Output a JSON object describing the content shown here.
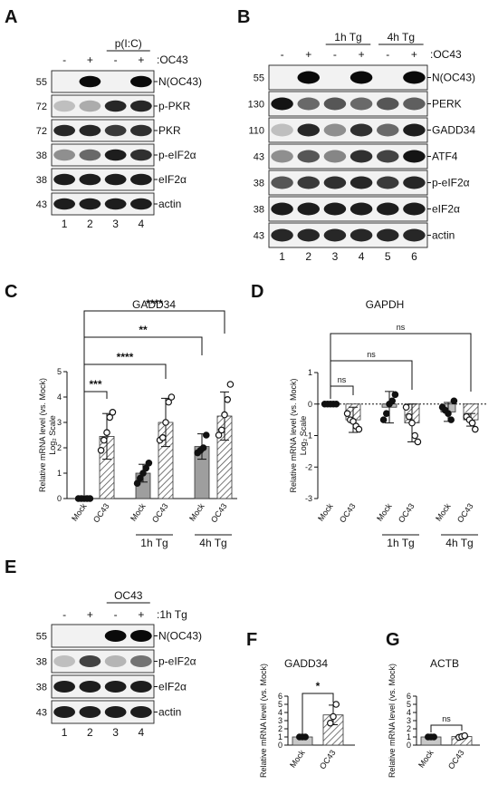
{
  "panels": {
    "A": {
      "label": "A",
      "group_label": "p(I:C)",
      "condition_label": ":OC43",
      "signs": [
        "-",
        "+",
        "-",
        "+"
      ],
      "lanes": [
        "1",
        "2",
        "3",
        "4"
      ],
      "blots": [
        {
          "mw": "55",
          "name": "N(OC43)"
        },
        {
          "mw": "72",
          "name": "p-PKR"
        },
        {
          "mw": "72",
          "name": "PKR"
        },
        {
          "mw": "38",
          "name": "p-eIF2α"
        },
        {
          "mw": "38",
          "name": "eIF2α"
        },
        {
          "mw": "43",
          "name": "actin"
        }
      ]
    },
    "B": {
      "label": "B",
      "group_labels": [
        "1h Tg",
        "4h Tg"
      ],
      "condition_label": ":OC43",
      "signs": [
        "-",
        "+",
        "-",
        "+",
        "-",
        "+"
      ],
      "lanes": [
        "1",
        "2",
        "3",
        "4",
        "5",
        "6"
      ],
      "blots": [
        {
          "mw": "55",
          "name": "N(OC43)"
        },
        {
          "mw": "130",
          "name": "PERK"
        },
        {
          "mw": "110",
          "name": "GADD34"
        },
        {
          "mw": "43",
          "name": "ATF4"
        },
        {
          "mw": "38",
          "name": "p-eIF2α"
        },
        {
          "mw": "38",
          "name": "eIF2α"
        },
        {
          "mw": "43",
          "name": "actin"
        }
      ]
    },
    "E": {
      "label": "E",
      "group_label": "OC43",
      "condition_label": ":1h Tg",
      "signs": [
        "-",
        "+",
        "-",
        "+"
      ],
      "lanes": [
        "1",
        "2",
        "3",
        "4"
      ],
      "blots": [
        {
          "mw": "55",
          "name": "N(OC43)"
        },
        {
          "mw": "38",
          "name": "p-eIF2α"
        },
        {
          "mw": "38",
          "name": "eIF2α"
        },
        {
          "mw": "43",
          "name": "actin"
        }
      ]
    }
  },
  "chart_data": [
    {
      "panel": "C",
      "type": "bar",
      "title": "GADD34",
      "ylabel": "Relative mRNA level (vs. Mock)",
      "ylabel2": "Log₂ Scale",
      "ylim": [
        0,
        5
      ],
      "yticks": [
        "0",
        "1",
        "2",
        "3",
        "4",
        "5"
      ],
      "categories": [
        "Mock",
        "OC43",
        "Mock",
        "OC43",
        "Mock",
        "OC43"
      ],
      "groups": [
        "1h Tg",
        "4h Tg"
      ],
      "values": [
        0,
        2.45,
        1.0,
        3.0,
        2.05,
        3.25
      ],
      "errors": [
        0,
        0.9,
        0.35,
        0.95,
        0.5,
        0.95
      ],
      "points": [
        [
          0,
          0,
          0,
          0,
          0
        ],
        [
          1.9,
          2.3,
          2.6,
          3.2,
          3.4
        ],
        [
          0.6,
          0.8,
          1.0,
          1.2,
          1.4
        ],
        [
          2.3,
          2.4,
          3.0,
          3.8,
          4.0
        ],
        [
          1.8,
          1.9,
          2.0,
          2.5
        ],
        [
          2.5,
          2.7,
          3.3,
          3.9,
          4.5
        ]
      ],
      "significance": [
        "***",
        "****",
        "**",
        "****"
      ]
    },
    {
      "panel": "D",
      "type": "bar",
      "title": "GAPDH",
      "ylabel": "Relative mRNA level (vs. Mock)",
      "ylabel2": "Log₂ Scale",
      "ylim": [
        -3,
        1
      ],
      "yticks": [
        "-3",
        "-2",
        "-1",
        "0",
        "1"
      ],
      "categories": [
        "Mock",
        "OC43",
        "Mock",
        "OC43",
        "Mock",
        "OC43"
      ],
      "groups": [
        "1h Tg",
        "4h Tg"
      ],
      "values": [
        0,
        -0.5,
        -0.1,
        -0.6,
        -0.25,
        -0.5
      ],
      "errors": [
        0,
        0.4,
        0.5,
        0.6,
        0.3,
        0.2
      ],
      "points": [
        [
          0,
          0,
          0,
          0,
          0
        ],
        [
          -0.3,
          -0.5,
          -0.55,
          -0.7,
          -0.8
        ],
        [
          -0.5,
          -0.3,
          0,
          0.1,
          0.3
        ],
        [
          -0.1,
          -0.4,
          -0.6,
          -1.0,
          -1.2
        ],
        [
          -0.1,
          -0.2,
          -0.3,
          -0.5,
          0.1
        ],
        [
          -0.4,
          -0.5,
          -0.6,
          -0.8
        ]
      ],
      "significance": [
        "ns",
        "ns",
        "ns"
      ]
    },
    {
      "panel": "F",
      "type": "bar",
      "title": "GADD34",
      "ylabel": "Relative mRNA level (vs. Mock)",
      "ylim": [
        0,
        6
      ],
      "yticks": [
        "0",
        "1",
        "2",
        "3",
        "4",
        "5",
        "6"
      ],
      "categories": [
        "Mock",
        "OC43"
      ],
      "values": [
        1.0,
        3.7
      ],
      "errors": [
        0,
        1.2
      ],
      "points": [
        [
          1,
          1,
          1
        ],
        [
          2.7,
          3.5,
          5.0
        ]
      ],
      "significance": [
        "*"
      ]
    },
    {
      "panel": "G",
      "type": "bar",
      "title": "ACTB",
      "ylabel": "Relative mRNA level (vs. Mock)",
      "ylim": [
        0,
        6
      ],
      "yticks": [
        "0",
        "1",
        "2",
        "3",
        "4",
        "5",
        "6"
      ],
      "categories": [
        "Mock",
        "OC43"
      ],
      "values": [
        1.0,
        1.05
      ],
      "errors": [
        0,
        0.15
      ],
      "points": [
        [
          1,
          1,
          1
        ],
        [
          0.95,
          1.05,
          1.15
        ]
      ],
      "significance": [
        "ns"
      ]
    }
  ]
}
